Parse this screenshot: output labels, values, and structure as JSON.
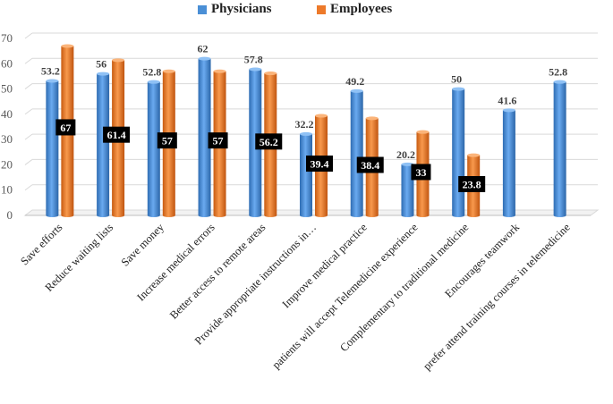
{
  "chart_data": {
    "type": "bar",
    "title": "",
    "xlabel": "",
    "ylabel": "",
    "ylim": [
      0,
      70
    ],
    "yticks": [
      "0",
      "10",
      "20",
      "30",
      "40",
      "50",
      "60",
      "70"
    ],
    "grid": true,
    "legend_position": "top-center",
    "categories": [
      "Save efforts",
      "Reduce waiting lists",
      "Save money",
      "Increase medical errors",
      "Better access to remote areas",
      "Provide appropriate instructions in…",
      "Improve medical practice",
      "patients will accept Telemedicine experience",
      "Complementary to traditional medicine",
      "Encourages teamwork",
      "prefer attend training courses in telemedicine"
    ],
    "series": [
      {
        "name": "Physicians",
        "color": "#4a8fd6",
        "values": [
          53.2,
          56,
          52.8,
          62,
          57.8,
          32.2,
          49.2,
          20.2,
          50,
          41.6,
          52.8
        ],
        "labels": [
          "53.2",
          "56",
          "52.8",
          "62",
          "57.8",
          "32.2",
          "49.2",
          "20.2",
          "50",
          "41.6",
          "52.8"
        ]
      },
      {
        "name": "Employees",
        "color": "#ed7a2a",
        "values": [
          67,
          61.4,
          57,
          57,
          56.2,
          39.4,
          38.4,
          33,
          23.8,
          null,
          null
        ],
        "labels": [
          "67",
          "61.4",
          "57",
          "57",
          "56.2",
          "39.4",
          "38.4",
          "33",
          "23.8",
          null,
          null
        ]
      }
    ]
  }
}
